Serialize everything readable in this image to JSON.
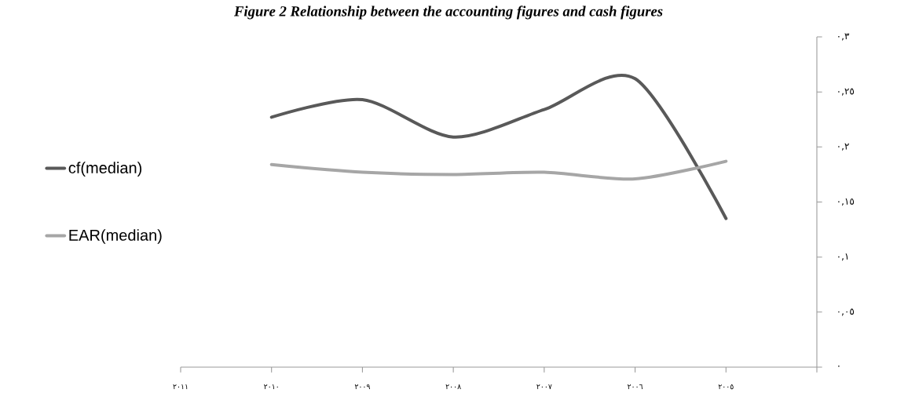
{
  "chart_data": {
    "type": "line",
    "title": "Figure 2  Relationship between the accounting figures and cash figures",
    "x": [
      2010,
      2009,
      2008,
      2007,
      2006,
      2005
    ],
    "xlim": [
      2011,
      2004
    ],
    "xticks": [
      {
        "value": 2011,
        "label": "٢٠١١"
      },
      {
        "value": 2010,
        "label": "٢٠١٠"
      },
      {
        "value": 2009,
        "label": "٢٠٠٩"
      },
      {
        "value": 2008,
        "label": "٢٠٠٨"
      },
      {
        "value": 2007,
        "label": "٢٠٠٧"
      },
      {
        "value": 2006,
        "label": "٢٠٠٦"
      },
      {
        "value": 2005,
        "label": "٢٠٠٥"
      },
      {
        "value": 2004,
        "label": null
      }
    ],
    "ylim": [
      0,
      0.3
    ],
    "yticks": [
      {
        "value": 0,
        "label": "٠"
      },
      {
        "value": 0.05,
        "label": "٠,٠٥"
      },
      {
        "value": 0.1,
        "label": "٠,١"
      },
      {
        "value": 0.15,
        "label": "٠,١٥"
      },
      {
        "value": 0.2,
        "label": "٠,٢"
      },
      {
        "value": 0.25,
        "label": "٠,٢٥"
      },
      {
        "value": 0.3,
        "label": "٠,٣"
      }
    ],
    "series": [
      {
        "name": "cf(median)",
        "color": "#595959",
        "values": [
          0.227,
          0.243,
          0.209,
          0.234,
          0.262,
          0.135
        ]
      },
      {
        "name": "EAR(median)",
        "color": "#a6a6a6",
        "values": [
          0.184,
          0.177,
          0.175,
          0.177,
          0.171,
          0.187
        ]
      }
    ],
    "legend": "left"
  }
}
